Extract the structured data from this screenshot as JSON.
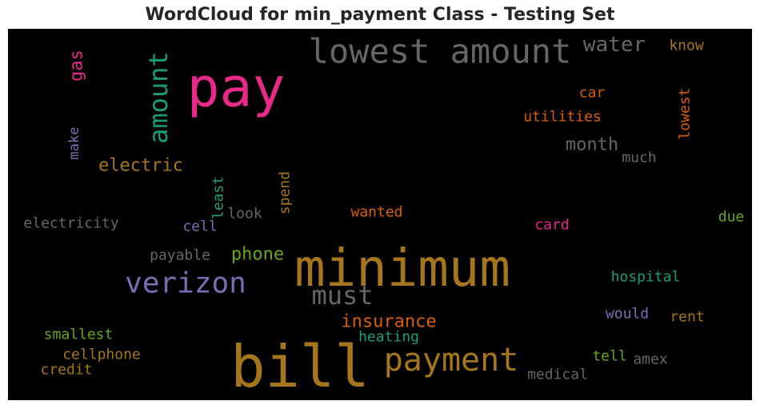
{
  "chart_data": {
    "type": "wordcloud",
    "title": "WordCloud for min_payment Class - Testing Set",
    "background": "#000000",
    "words": [
      {
        "text": "bill",
        "color": "#a6761d",
        "vertical": false
      },
      {
        "text": "minimum",
        "color": "#a6761d",
        "vertical": false
      },
      {
        "text": "pay",
        "color": "#e7298a",
        "vertical": false
      },
      {
        "text": "lowest amount",
        "color": "#666666",
        "vertical": false
      },
      {
        "text": "payment",
        "color": "#a6761d",
        "vertical": false
      },
      {
        "text": "verizon",
        "color": "#7570b3",
        "vertical": false
      },
      {
        "text": "amount",
        "color": "#1b9e77",
        "vertical": true
      },
      {
        "text": "must",
        "color": "#666666",
        "vertical": false
      },
      {
        "text": "water",
        "color": "#666666",
        "vertical": false
      },
      {
        "text": "insurance",
        "color": "#d95f02",
        "vertical": false
      },
      {
        "text": "electric",
        "color": "#a6761d",
        "vertical": false
      },
      {
        "text": "month",
        "color": "#666666",
        "vertical": false
      },
      {
        "text": "phone",
        "color": "#66a61e",
        "vertical": false
      },
      {
        "text": "gas",
        "color": "#e7298a",
        "vertical": true
      },
      {
        "text": "hospital",
        "color": "#1b9e77",
        "vertical": false
      },
      {
        "text": "heating",
        "color": "#1b9e77",
        "vertical": false
      },
      {
        "text": "utilities",
        "color": "#d95f02",
        "vertical": false
      },
      {
        "text": "electricity",
        "color": "#666666",
        "vertical": false
      },
      {
        "text": "smallest",
        "color": "#66a61e",
        "vertical": false
      },
      {
        "text": "cellphone",
        "color": "#a6761d",
        "vertical": false
      },
      {
        "text": "credit",
        "color": "#a6761d",
        "vertical": false
      },
      {
        "text": "medical",
        "color": "#666666",
        "vertical": false
      },
      {
        "text": "wanted",
        "color": "#d95f02",
        "vertical": false
      },
      {
        "text": "card",
        "color": "#e7298a",
        "vertical": false
      },
      {
        "text": "payable",
        "color": "#666666",
        "vertical": false
      },
      {
        "text": "would",
        "color": "#7570b3",
        "vertical": false
      },
      {
        "text": "rent",
        "color": "#a6761d",
        "vertical": false
      },
      {
        "text": "tell",
        "color": "#66a61e",
        "vertical": false
      },
      {
        "text": "amex",
        "color": "#666666",
        "vertical": false
      },
      {
        "text": "due",
        "color": "#66a61e",
        "vertical": false
      },
      {
        "text": "know",
        "color": "#a6761d",
        "vertical": false
      },
      {
        "text": "car",
        "color": "#d95f02",
        "vertical": false
      },
      {
        "text": "much",
        "color": "#666666",
        "vertical": false
      },
      {
        "text": "look",
        "color": "#666666",
        "vertical": false
      },
      {
        "text": "cell",
        "color": "#7570b3",
        "vertical": false
      },
      {
        "text": "lowest",
        "color": "#d95f02",
        "vertical": true
      },
      {
        "text": "make",
        "color": "#7570b3",
        "vertical": true
      },
      {
        "text": "least",
        "color": "#1b9e77",
        "vertical": true
      },
      {
        "text": "spend",
        "color": "#a6761d",
        "vertical": true
      }
    ]
  }
}
